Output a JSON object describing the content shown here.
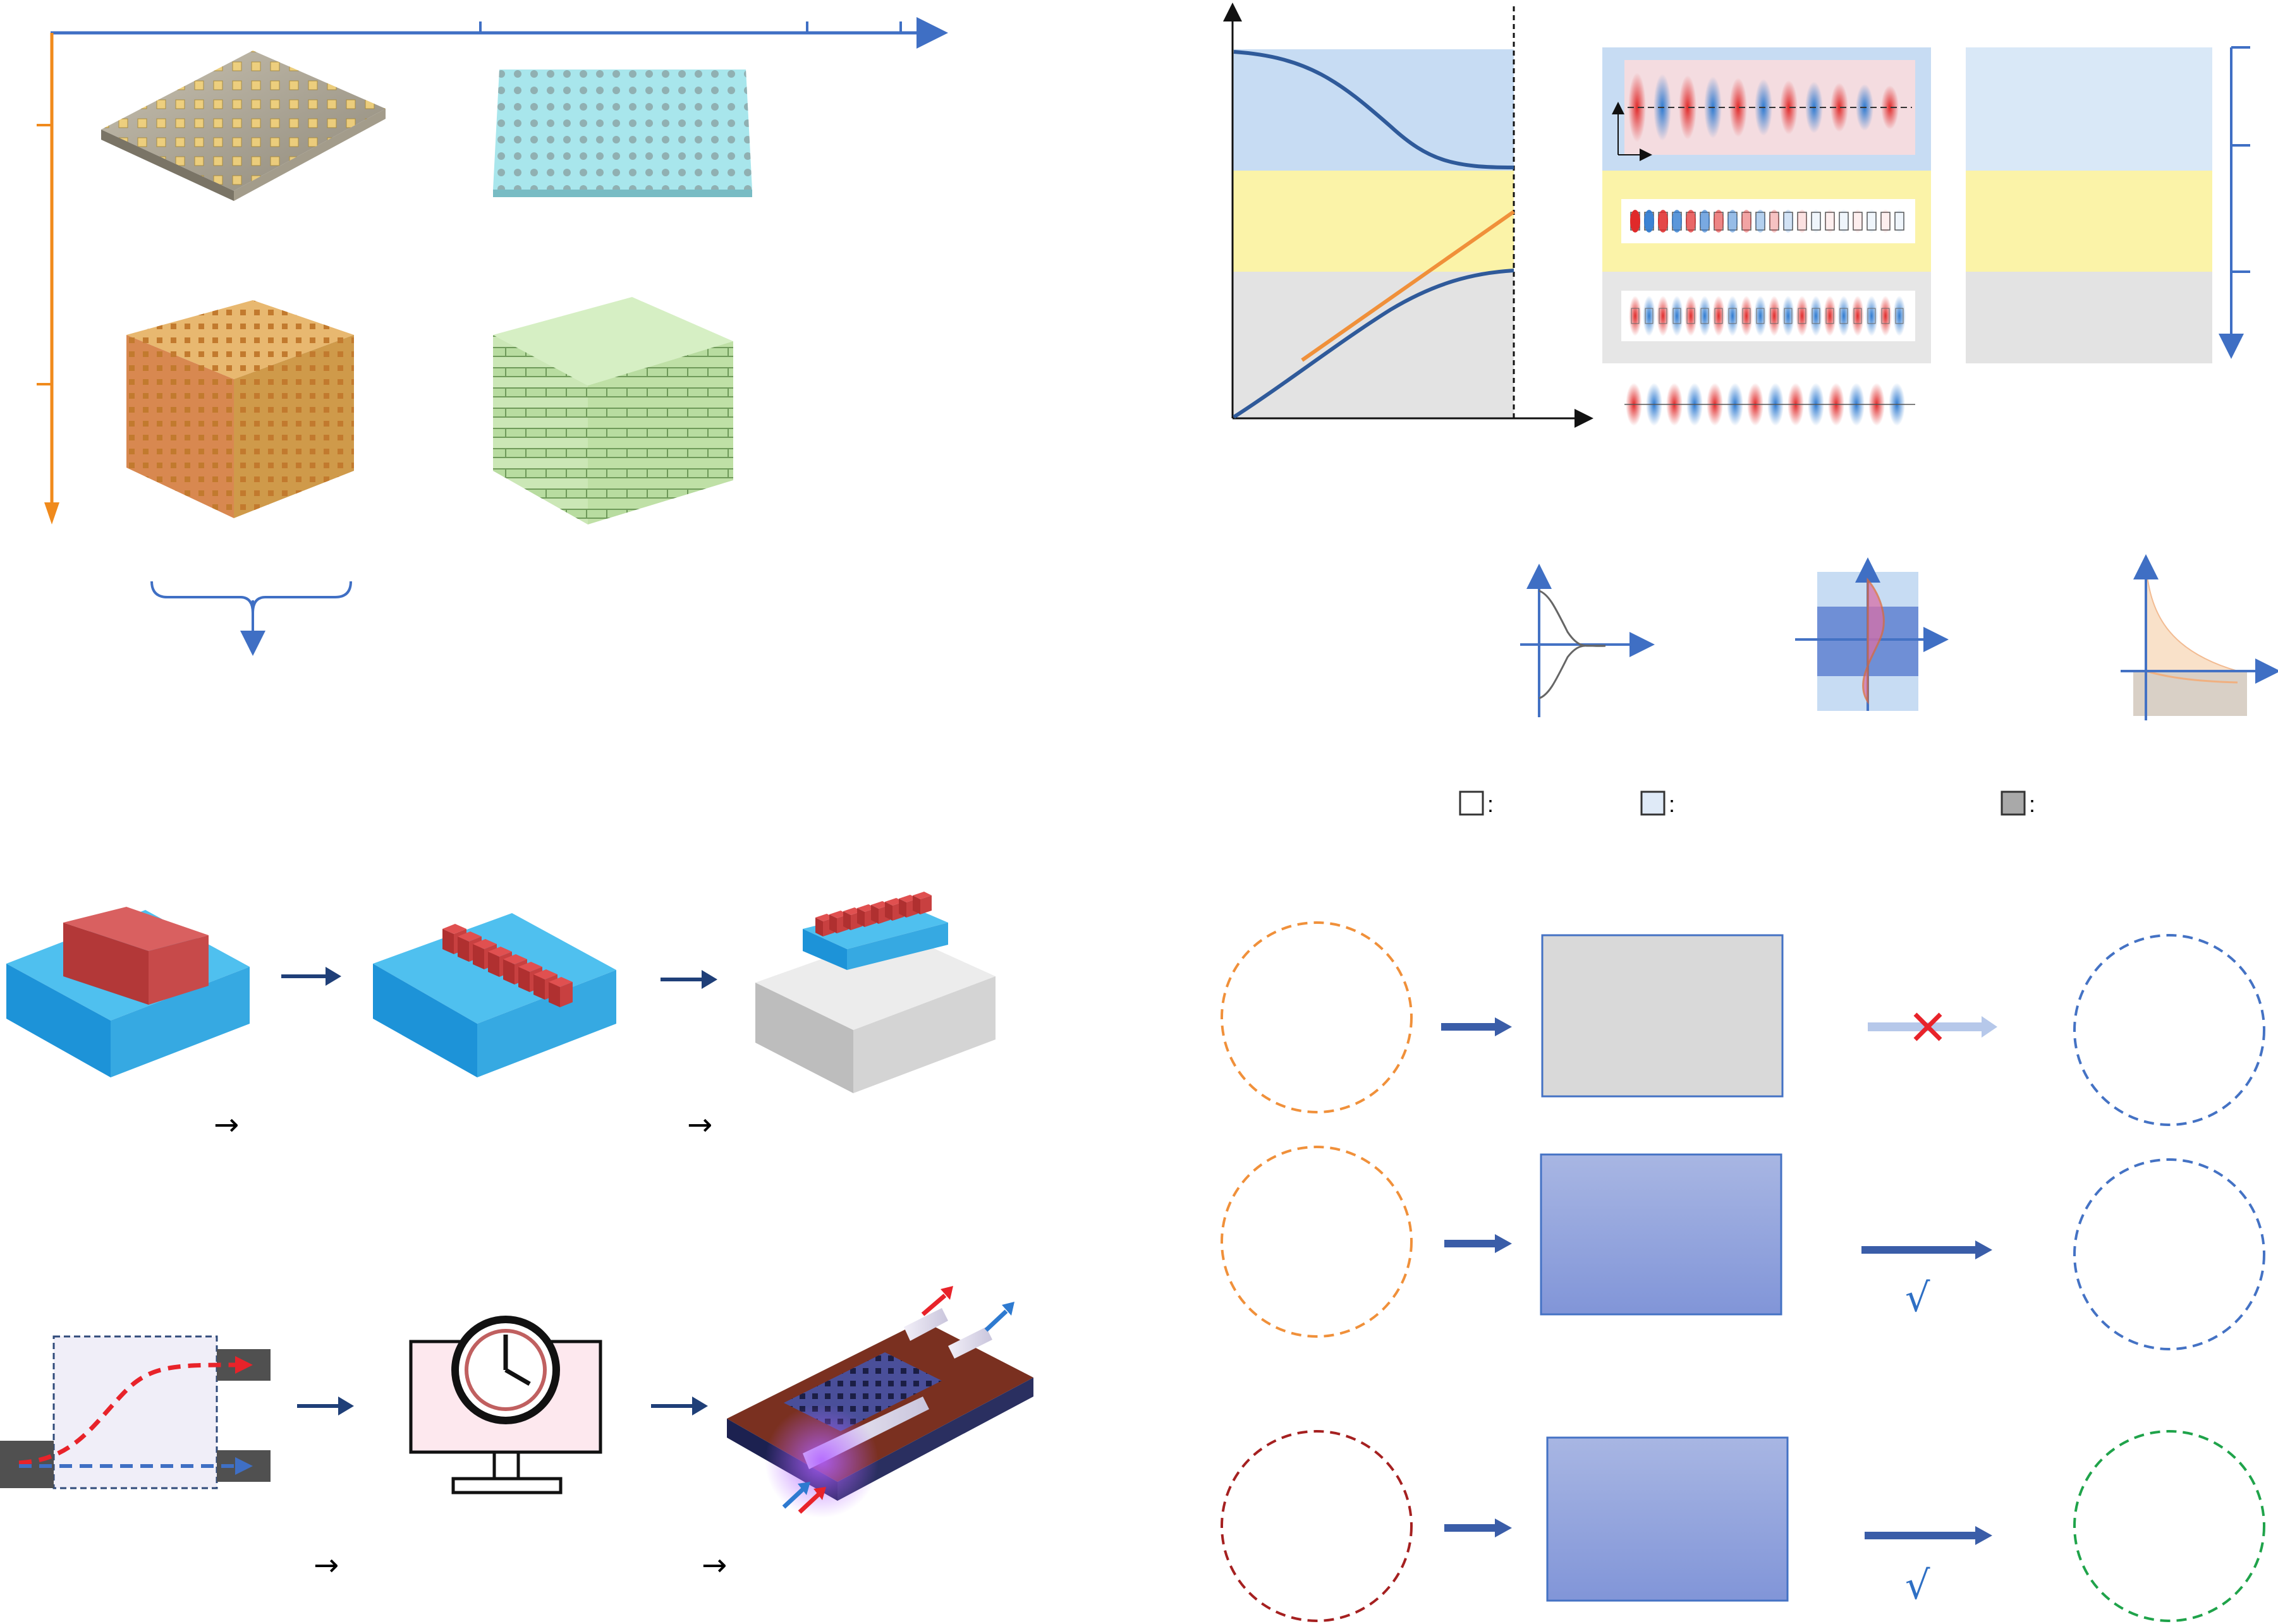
{
  "title": "",
  "colors": {
    "axis_blue": "#3f6fc4",
    "axis_orange": "#f08a1c",
    "panel_blue": "#c7dcf3",
    "panel_yellow": "#fbf3a8",
    "panel_gray": "#e3e3e3",
    "curve_blue": "#2f5a9a",
    "curve_orange": "#f0903a",
    "field_red": "#e02a2a",
    "field_blue": "#2e7ad0",
    "arrow_navy": "#1f3f78",
    "box_gray": "#d9d9d9",
    "box_blue": "#9eb0e0",
    "circle_orange": "#f0903a",
    "circle_blue": "#4472c4",
    "circle_darkred": "#a52020",
    "circle_green": "#1fa34a",
    "cross_red": "#e8232a",
    "check_blue": "#2e6fc4"
  },
  "legend": {
    "items": [
      {
        "suffix": ":",
        "swatch": "white"
      },
      {
        "suffix": ":",
        "swatch": "light-blue"
      },
      {
        "suffix": ":",
        "swatch": "gray"
      }
    ]
  },
  "flow_rows": {
    "rows": [
      {
        "result": "cross"
      },
      {
        "result": "check",
        "mark": "√"
      },
      {
        "result": "check",
        "mark": "√"
      }
    ]
  },
  "step_arrows": {
    "fabrication": [
      "→",
      "→"
    ],
    "design": [
      "→",
      "→"
    ]
  }
}
